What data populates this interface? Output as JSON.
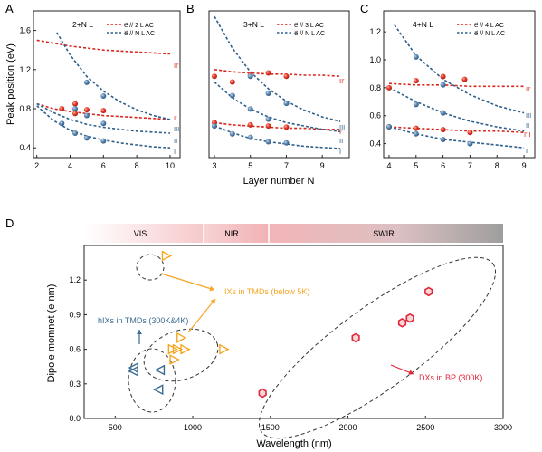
{
  "figure": {
    "colors": {
      "red": "#d9261c",
      "blue": "#2e5f8a",
      "blue_point": "#5b86ad",
      "orange": "#f5a623",
      "hex_red": "#e0283a",
      "tri_blue": "#3a6c93"
    }
  },
  "chart_data": [
    {
      "panel_label": "A",
      "type": "line",
      "title": "2+N L",
      "ylabel": "Peak position (eV)",
      "xlabel": "",
      "xlim": [
        1.8,
        10.6
      ],
      "ylim": [
        0.3,
        1.8
      ],
      "xticks": [
        2,
        4,
        6,
        8,
        10
      ],
      "yticks": [
        0.4,
        0.8,
        1.2,
        1.6
      ],
      "legend": [
        "e⃗ // 2 L AC",
        "e⃗ // N L AC"
      ],
      "red_curves": [
        {
          "name": "II'",
          "x": [
            2,
            3,
            4,
            5,
            6,
            7,
            8,
            9,
            10
          ],
          "y": [
            1.5,
            1.47,
            1.44,
            1.42,
            1.4,
            1.39,
            1.38,
            1.37,
            1.36
          ]
        },
        {
          "name": "I'",
          "x": [
            2,
            3,
            4,
            5,
            6,
            7,
            8,
            9,
            10
          ],
          "y": [
            0.85,
            0.8,
            0.77,
            0.75,
            0.73,
            0.72,
            0.71,
            0.7,
            0.69
          ]
        }
      ],
      "blue_curves": [
        {
          "name": "III",
          "x": [
            3.2,
            4,
            5,
            6,
            7,
            8,
            9,
            10
          ],
          "y": [
            1.58,
            1.35,
            1.13,
            0.98,
            0.87,
            0.79,
            0.73,
            0.69
          ]
        },
        {
          "name": "II",
          "x": [
            2,
            3,
            4,
            5,
            6,
            7,
            8,
            9,
            10
          ],
          "y": [
            0.85,
            0.76,
            0.69,
            0.64,
            0.61,
            0.59,
            0.57,
            0.56,
            0.55
          ]
        },
        {
          "name": "I",
          "x": [
            2,
            3,
            4,
            5,
            6,
            7,
            8,
            9,
            10
          ],
          "y": [
            0.83,
            0.68,
            0.58,
            0.52,
            0.48,
            0.45,
            0.43,
            0.41,
            0.4
          ]
        }
      ],
      "red_points": [
        {
          "x": 3.5,
          "y": 0.8
        },
        {
          "x": 4.3,
          "y": 0.75
        },
        {
          "x": 4.3,
          "y": 0.85
        },
        {
          "x": 5,
          "y": 0.79
        },
        {
          "x": 6,
          "y": 0.78
        }
      ],
      "blue_points": [
        {
          "x": 4.3,
          "y": 0.8
        },
        {
          "x": 5,
          "y": 1.07
        },
        {
          "x": 5,
          "y": 0.73
        },
        {
          "x": 6,
          "y": 0.93
        },
        {
          "x": 6,
          "y": 0.65
        },
        {
          "x": 3.5,
          "y": 0.65
        },
        {
          "x": 4.3,
          "y": 0.55
        },
        {
          "x": 5,
          "y": 0.5
        },
        {
          "x": 6,
          "y": 0.47
        }
      ],
      "curve_labels": [
        "II'",
        "I'",
        "III",
        "II",
        "I"
      ]
    },
    {
      "panel_label": "B",
      "type": "line",
      "title": "3+N L",
      "xlabel": "Layer number N",
      "ylabel": "",
      "xlim": [
        2.7,
        10.5
      ],
      "ylim": [
        0.3,
        1.6
      ],
      "xticks": [
        3,
        5,
        7,
        9
      ],
      "yticks": [],
      "legend": [
        "e⃗ // 3 L AC",
        "e⃗ // N L AC"
      ],
      "red_curves": [
        {
          "name": "II'",
          "x": [
            3,
            4,
            5,
            6,
            7,
            8,
            9,
            10
          ],
          "y": [
            1.08,
            1.06,
            1.05,
            1.04,
            1.04,
            1.03,
            1.03,
            1.02
          ]
        },
        {
          "name": "I'",
          "x": [
            3,
            4,
            5,
            6,
            7,
            8,
            9,
            10
          ],
          "y": [
            0.61,
            0.59,
            0.58,
            0.57,
            0.56,
            0.56,
            0.55,
            0.55
          ]
        }
      ],
      "blue_curves": [
        {
          "name": "III",
          "x": [
            3,
            4,
            5,
            6,
            7,
            8,
            9,
            10
          ],
          "y": [
            1.55,
            1.27,
            1.06,
            0.91,
            0.8,
            0.72,
            0.66,
            0.62
          ]
        },
        {
          "name": "II",
          "x": [
            3,
            4,
            5,
            6,
            7,
            8,
            9,
            10
          ],
          "y": [
            0.97,
            0.83,
            0.73,
            0.66,
            0.61,
            0.58,
            0.55,
            0.53
          ]
        },
        {
          "name": "I",
          "x": [
            3,
            4,
            5,
            6,
            7,
            8,
            9,
            10
          ],
          "y": [
            0.58,
            0.52,
            0.47,
            0.44,
            0.42,
            0.4,
            0.39,
            0.38
          ]
        }
      ],
      "red_points": [
        {
          "x": 3,
          "y": 1.02
        },
        {
          "x": 4,
          "y": 0.97
        },
        {
          "x": 5,
          "y": 1.03
        },
        {
          "x": 6,
          "y": 1.05
        },
        {
          "x": 7,
          "y": 1.02
        },
        {
          "x": 3,
          "y": 0.61
        },
        {
          "x": 5,
          "y": 0.59
        },
        {
          "x": 6,
          "y": 0.58
        },
        {
          "x": 7,
          "y": 0.57
        }
      ],
      "blue_points": [
        {
          "x": 4,
          "y": 0.85
        },
        {
          "x": 5,
          "y": 1.02
        },
        {
          "x": 6,
          "y": 0.87
        },
        {
          "x": 5,
          "y": 0.73
        },
        {
          "x": 6,
          "y": 0.64
        },
        {
          "x": 7,
          "y": 0.78
        },
        {
          "x": 3,
          "y": 0.58
        },
        {
          "x": 4,
          "y": 0.51
        },
        {
          "x": 5,
          "y": 0.48
        },
        {
          "x": 6,
          "y": 0.44
        },
        {
          "x": 7,
          "y": 0.43
        }
      ],
      "curve_labels": [
        "II'",
        "I'",
        "III",
        "II",
        "I"
      ]
    },
    {
      "panel_label": "C",
      "type": "line",
      "title": "4+N L",
      "xlabel": "",
      "ylabel": "",
      "xlim": [
        3.8,
        9.4
      ],
      "ylim": [
        0.3,
        1.35
      ],
      "xticks": [
        4,
        5,
        6,
        7,
        8,
        9
      ],
      "yticks": [
        0.4,
        0.6,
        0.8,
        1.0,
        1.2
      ],
      "legend": [
        "e⃗ // 4 L AC",
        "e⃗ // N L AC"
      ],
      "red_curves": [
        {
          "name": "II'",
          "x": [
            4,
            5,
            6,
            7,
            8,
            9
          ],
          "y": [
            0.83,
            0.82,
            0.82,
            0.81,
            0.81,
            0.81
          ]
        },
        {
          "name": "I'II",
          "x": [
            4,
            5,
            6,
            7,
            8,
            9
          ],
          "y": [
            0.52,
            0.51,
            0.5,
            0.49,
            0.49,
            0.48
          ]
        }
      ],
      "blue_curves": [
        {
          "name": "III",
          "x": [
            4.2,
            5,
            6,
            7,
            8,
            9
          ],
          "y": [
            1.25,
            1.03,
            0.86,
            0.75,
            0.67,
            0.62
          ]
        },
        {
          "name": "II",
          "x": [
            4,
            5,
            6,
            7,
            8,
            9
          ],
          "y": [
            0.8,
            0.7,
            0.62,
            0.56,
            0.52,
            0.49
          ]
        },
        {
          "name": "I",
          "x": [
            4,
            5,
            6,
            7,
            8,
            9
          ],
          "y": [
            0.52,
            0.47,
            0.43,
            0.41,
            0.39,
            0.37
          ]
        }
      ],
      "red_points": [
        {
          "x": 4,
          "y": 0.8
        },
        {
          "x": 5,
          "y": 0.85
        },
        {
          "x": 6,
          "y": 0.88
        },
        {
          "x": 6.8,
          "y": 0.86
        },
        {
          "x": 5,
          "y": 0.51
        },
        {
          "x": 6,
          "y": 0.5
        },
        {
          "x": 7,
          "y": 0.48
        },
        {
          "x": 4,
          "y": 0.52
        }
      ],
      "blue_points": [
        {
          "x": 5,
          "y": 1.02
        },
        {
          "x": 6,
          "y": 0.82
        },
        {
          "x": 5,
          "y": 0.68
        },
        {
          "x": 6,
          "y": 0.62
        },
        {
          "x": 4,
          "y": 0.52
        },
        {
          "x": 5,
          "y": 0.47
        },
        {
          "x": 6,
          "y": 0.43
        },
        {
          "x": 7,
          "y": 0.4
        }
      ],
      "curve_labels": [
        "II'",
        "III",
        "II",
        "I'II",
        "I"
      ]
    },
    {
      "panel_label": "D",
      "type": "scatter",
      "title": "",
      "xlabel": "Wavelength (nm)",
      "ylabel": "Dipole momnet (e nm)",
      "xlim": [
        300,
        3000
      ],
      "ylim": [
        0.0,
        1.5
      ],
      "xticks": [
        500,
        1000,
        1500,
        2000,
        2500,
        3000
      ],
      "yticks": [
        0.0,
        0.3,
        0.6,
        0.9,
        1.2
      ],
      "bands": [
        {
          "label": "VIS",
          "from": 300,
          "to": 880
        },
        {
          "label": "NIR",
          "from": 880,
          "to": 1460
        },
        {
          "label": "SWIR",
          "from": 1460,
          "to": 3000
        }
      ],
      "series": [
        {
          "name": "IXs in TMDs (below 5K)",
          "marker": "triangle-right",
          "points": [
            {
              "x": 830,
              "y": 1.41
            },
            {
              "x": 900,
              "y": 0.6
            },
            {
              "x": 950,
              "y": 0.6
            },
            {
              "x": 925,
              "y": 0.7
            },
            {
              "x": 870,
              "y": 0.6
            },
            {
              "x": 880,
              "y": 0.51
            },
            {
              "x": 1200,
              "y": 0.6
            }
          ]
        },
        {
          "name": "hIXs in TMDs (300K&4K)",
          "marker": "triangle-left",
          "points": [
            {
              "x": 620,
              "y": 0.44
            },
            {
              "x": 620,
              "y": 0.41
            },
            {
              "x": 790,
              "y": 0.42
            },
            {
              "x": 780,
              "y": 0.25
            }
          ]
        },
        {
          "name": "DXs in BP (300K)",
          "marker": "hexagon",
          "points": [
            {
              "x": 1450,
              "y": 0.22
            },
            {
              "x": 2050,
              "y": 0.7
            },
            {
              "x": 2350,
              "y": 0.83
            },
            {
              "x": 2400,
              "y": 0.87
            },
            {
              "x": 2520,
              "y": 1.1
            }
          ]
        }
      ]
    }
  ]
}
